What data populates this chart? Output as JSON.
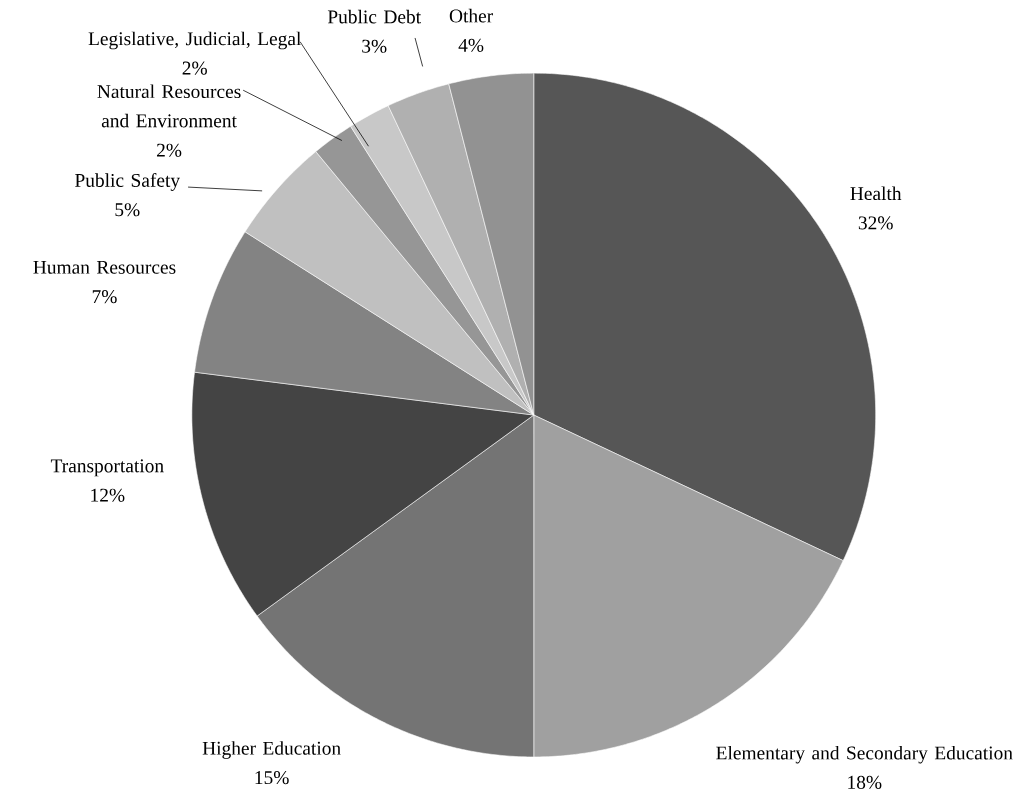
{
  "chart_data": {
    "type": "pie",
    "categories": [
      "Health",
      "Elementary and Secondary Education",
      "Higher Education",
      "Transportation",
      "Human Resources",
      "Public Safety",
      "Natural Resources and Environment",
      "Legislative, Judicial, Legal",
      "Public Debt",
      "Other"
    ],
    "values": [
      32,
      18,
      15,
      12,
      7,
      5,
      2,
      2,
      3,
      4
    ],
    "value_labels": [
      "32%",
      "18%",
      "15%",
      "12%",
      "7%",
      "5%",
      "2%",
      "2%",
      "3%",
      "4%"
    ],
    "colors": [
      "#565656",
      "#a0a0a0",
      "#747474",
      "#444444",
      "#838383",
      "#c0c0c0",
      "#969696",
      "#c8c8c8",
      "#b0b0b0",
      "#929292"
    ]
  }
}
